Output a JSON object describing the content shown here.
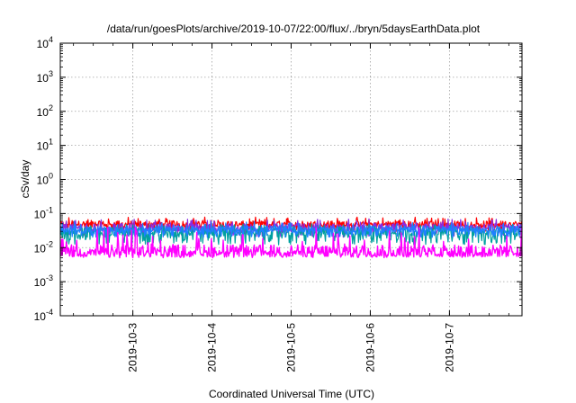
{
  "chart_data": {
    "type": "line",
    "title": "/data/run/goesPlots/archive/2019-10-07/22:00/flux/../bryn/5daysEarthData.plot",
    "xlabel": "Coordinated Universal Time (UTC)",
    "ylabel": "cSv/day",
    "xlim": [
      "2019-10-02 02:00",
      "2019-10-07 22:00"
    ],
    "ylim": [
      0.0001,
      10000
    ],
    "yscale": "log",
    "grid": true,
    "xticks": [
      "2019-10-3",
      "2019-10-4",
      "2019-10-5",
      "2019-10-6",
      "2019-10-7"
    ],
    "yticks": [
      {
        "base": "10",
        "exp": "-4"
      },
      {
        "base": "10",
        "exp": "-3"
      },
      {
        "base": "10",
        "exp": "-2"
      },
      {
        "base": "10",
        "exp": "-1"
      },
      {
        "base": "10",
        "exp": "0"
      },
      {
        "base": "10",
        "exp": "1"
      },
      {
        "base": "10",
        "exp": "2"
      },
      {
        "base": "10",
        "exp": "3"
      },
      {
        "base": "10",
        "exp": "4"
      }
    ],
    "series": [
      {
        "color": "#ff0000",
        "typical": 0.05,
        "low": 0.03,
        "high": 0.08
      },
      {
        "color": "#8a2be2",
        "typical": 0.04,
        "low": 0.02,
        "high": 0.07
      },
      {
        "color": "#00a0a0",
        "typical": 0.03,
        "low": 0.012,
        "high": 0.05
      },
      {
        "color": "#1e7fff",
        "typical": 0.035,
        "low": 0.02,
        "high": 0.06
      },
      {
        "color": "#ff00ff",
        "typical": 0.008,
        "low": 0.005,
        "high": 0.04
      }
    ]
  }
}
